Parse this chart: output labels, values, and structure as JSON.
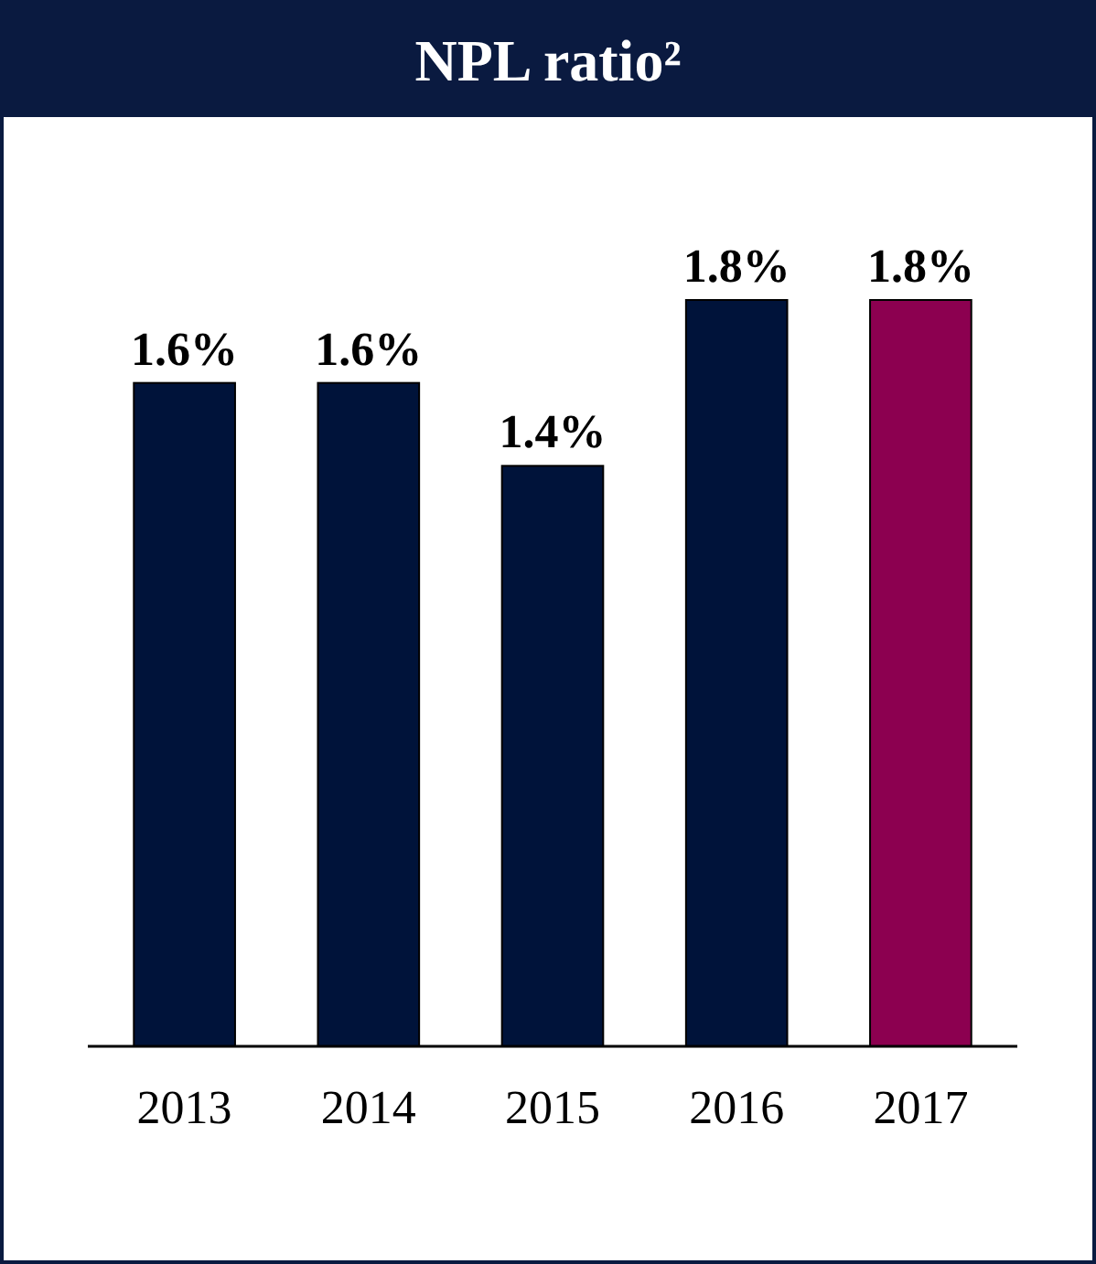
{
  "chart_data": {
    "type": "bar",
    "title": "NPL ratio²",
    "categories": [
      "2013",
      "2014",
      "2015",
      "2016",
      "2017"
    ],
    "values": [
      1.6,
      1.6,
      1.4,
      1.8,
      1.8
    ],
    "colors": [
      "#00133a",
      "#00133a",
      "#00133a",
      "#00133a",
      "#8c0050"
    ],
    "value_labels": [
      "1.6%",
      "1.6%",
      "1.4%",
      "1.8%",
      "1.8%"
    ]
  }
}
